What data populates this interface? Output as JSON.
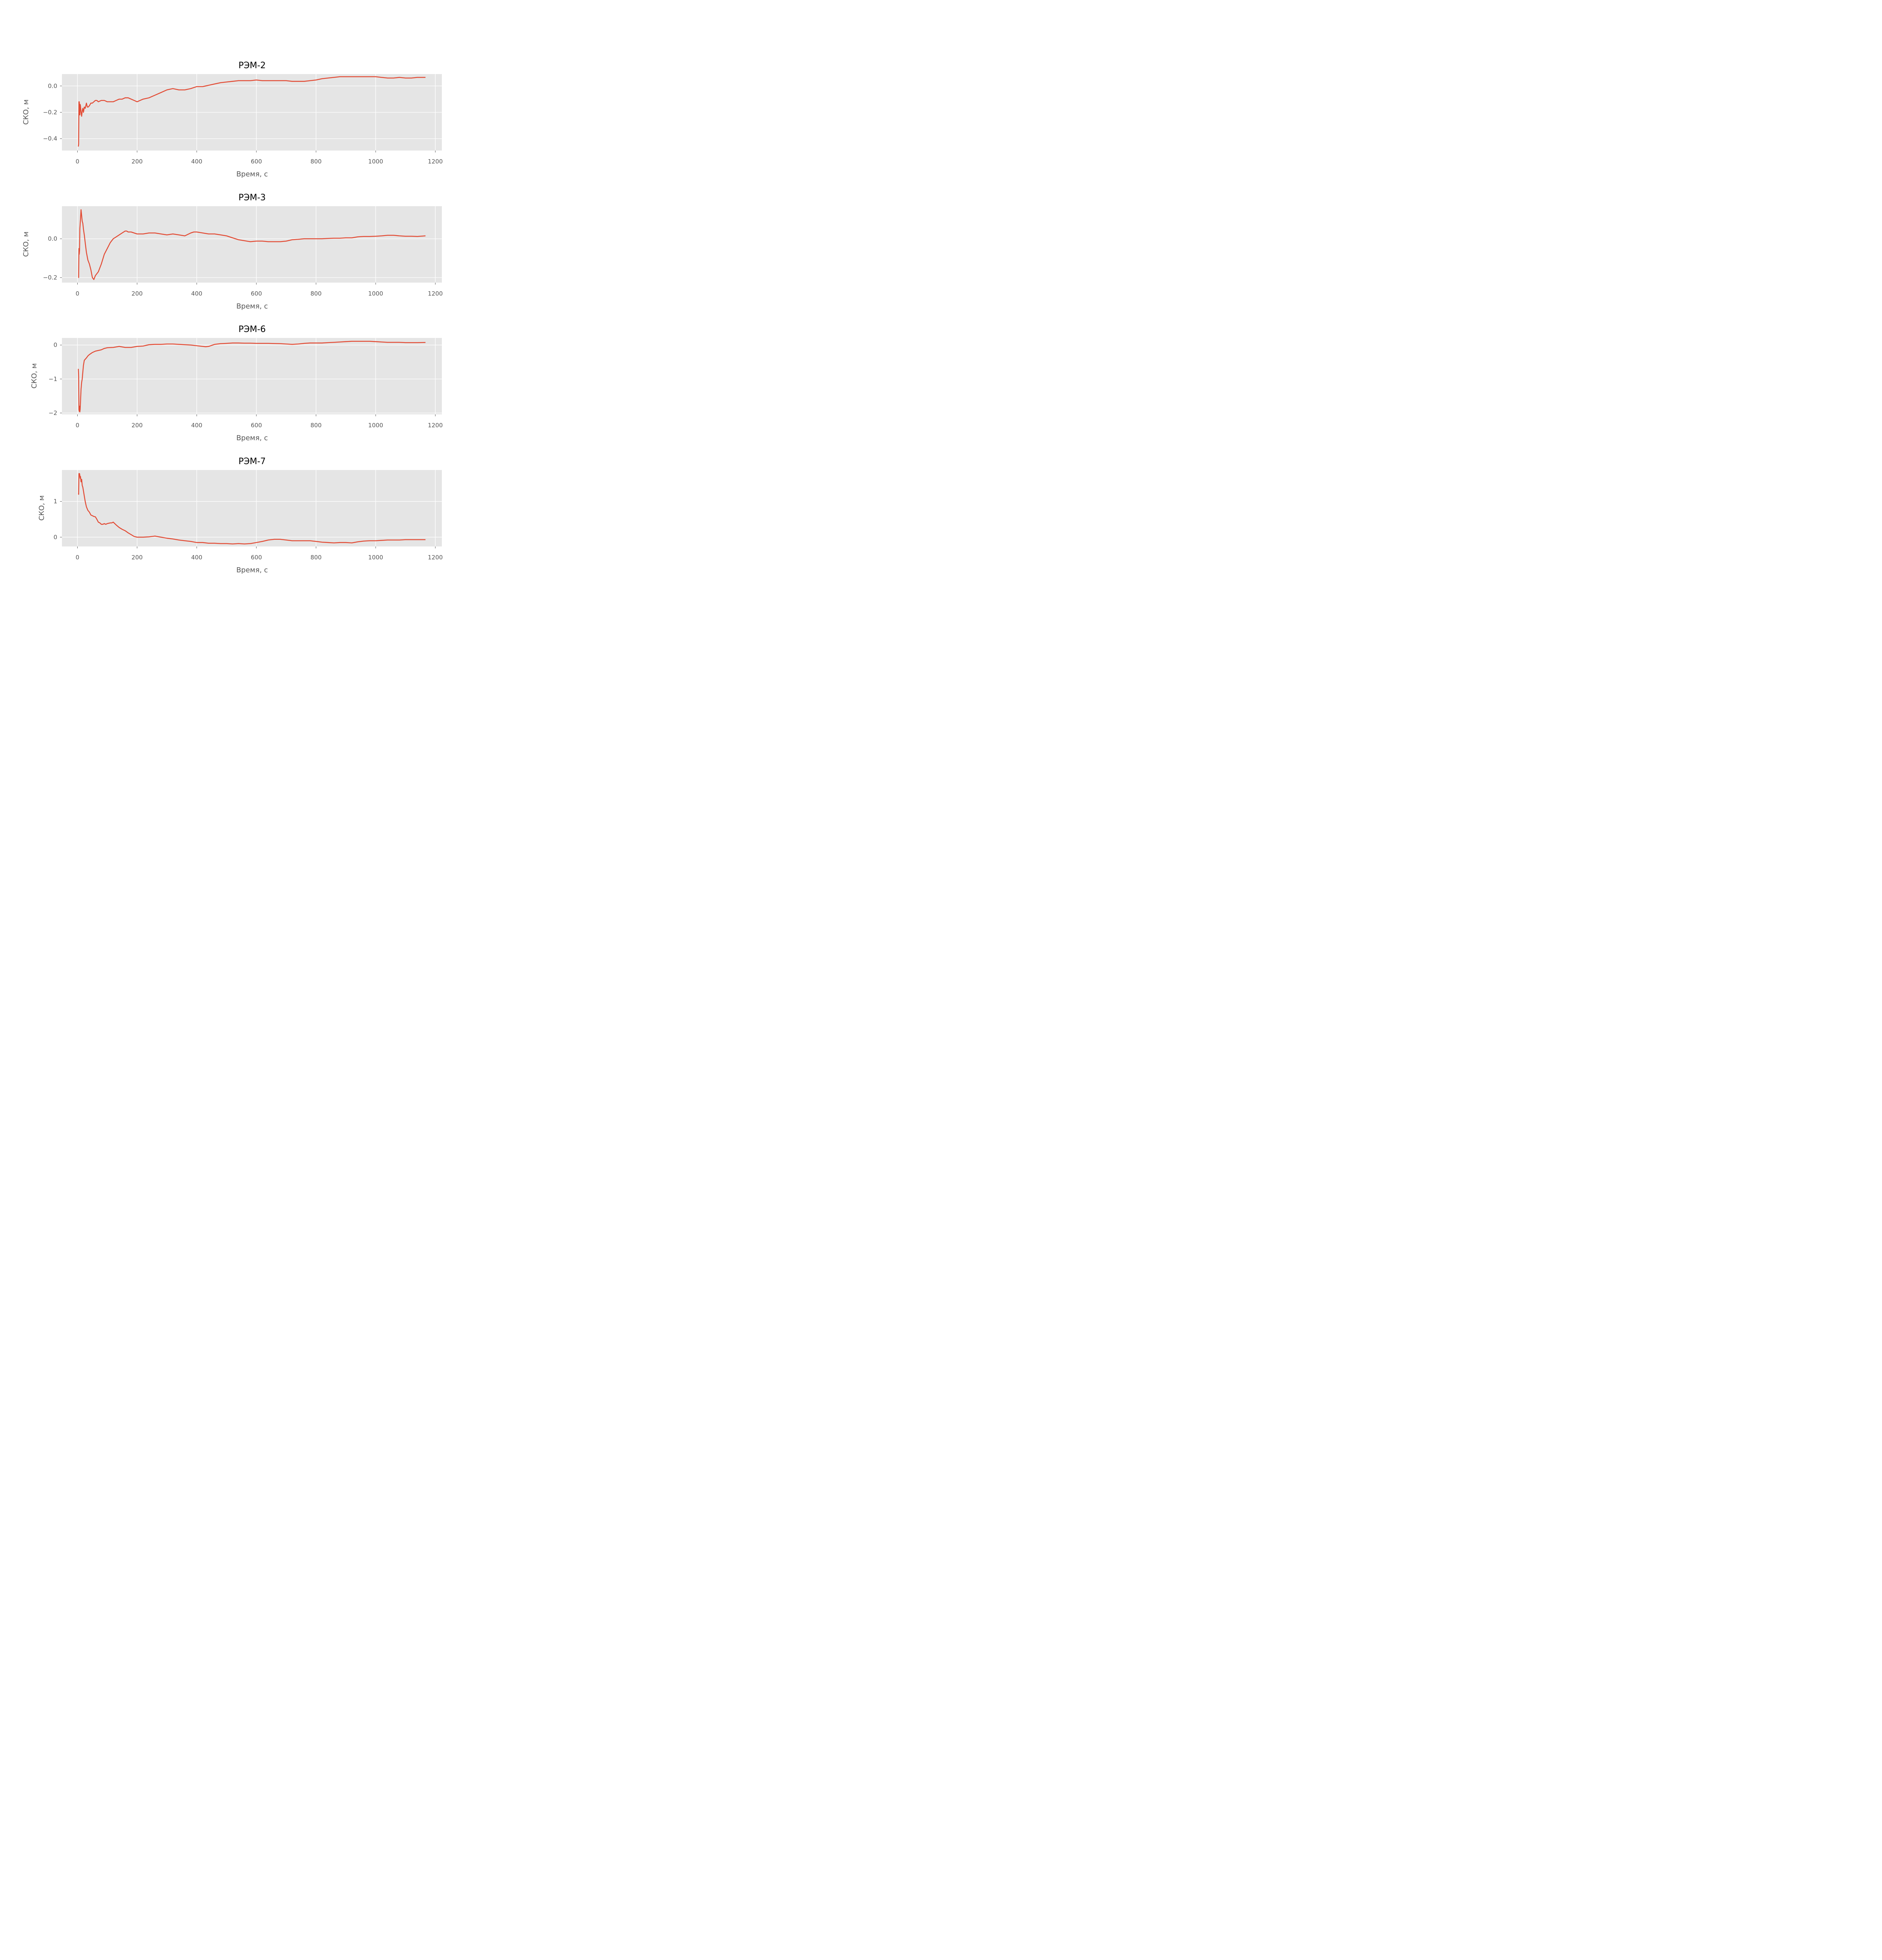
{
  "chart_data": [
    {
      "type": "line",
      "title": "РЭМ-2",
      "xlabel": "Время, с",
      "ylabel": "СКО, м",
      "xlim": [
        -52,
        1222
      ],
      "ylim": [
        -0.49,
        0.09
      ],
      "xticks": [
        0,
        200,
        400,
        600,
        800,
        1000,
        1200
      ],
      "xtick_labels": [
        "0",
        "200",
        "400",
        "600",
        "800",
        "1000",
        "1200"
      ],
      "yticks": [
        -0.4,
        -0.2,
        0.0
      ],
      "ytick_labels": [
        "−0.4",
        "−0.2",
        "0.0"
      ],
      "grid": true,
      "series": [
        {
          "color": "#E24A33",
          "x": [
            3,
            4,
            5,
            6,
            7,
            8,
            9,
            10,
            12,
            14,
            16,
            18,
            20,
            23,
            26,
            30,
            33,
            36,
            40,
            45,
            50,
            55,
            60,
            65,
            70,
            80,
            90,
            100,
            110,
            120,
            130,
            140,
            150,
            160,
            170,
            180,
            190,
            200,
            210,
            220,
            240,
            260,
            280,
            300,
            320,
            340,
            360,
            380,
            400,
            420,
            440,
            460,
            480,
            500,
            520,
            540,
            560,
            580,
            600,
            620,
            640,
            660,
            680,
            700,
            720,
            740,
            760,
            780,
            800,
            820,
            840,
            860,
            880,
            900,
            920,
            940,
            960,
            980,
            1000,
            1020,
            1040,
            1060,
            1080,
            1100,
            1120,
            1140,
            1167
          ],
          "y": [
            -0.46,
            -0.44,
            -0.12,
            -0.12,
            -0.15,
            -0.22,
            -0.14,
            -0.15,
            -0.2,
            -0.23,
            -0.19,
            -0.17,
            -0.2,
            -0.16,
            -0.17,
            -0.13,
            -0.16,
            -0.16,
            -0.15,
            -0.13,
            -0.13,
            -0.12,
            -0.11,
            -0.11,
            -0.12,
            -0.11,
            -0.11,
            -0.12,
            -0.12,
            -0.12,
            -0.11,
            -0.1,
            -0.1,
            -0.09,
            -0.09,
            -0.1,
            -0.11,
            -0.12,
            -0.11,
            -0.1,
            -0.09,
            -0.07,
            -0.05,
            -0.03,
            -0.02,
            -0.03,
            -0.03,
            -0.02,
            -0.005,
            -0.005,
            0.005,
            0.015,
            0.025,
            0.03,
            0.035,
            0.04,
            0.04,
            0.04,
            0.045,
            0.04,
            0.04,
            0.04,
            0.04,
            0.04,
            0.035,
            0.035,
            0.035,
            0.04,
            0.045,
            0.055,
            0.06,
            0.065,
            0.07,
            0.07,
            0.07,
            0.07,
            0.07,
            0.07,
            0.07,
            0.065,
            0.06,
            0.06,
            0.065,
            0.06,
            0.06,
            0.065,
            0.065
          ]
        }
      ]
    },
    {
      "type": "line",
      "title": "РЭМ-3",
      "xlabel": "Время, с",
      "ylabel": "СКО, м",
      "xlim": [
        -52,
        1222
      ],
      "ylim": [
        -0.226,
        0.168
      ],
      "xticks": [
        0,
        200,
        400,
        600,
        800,
        1000,
        1200
      ],
      "xtick_labels": [
        "0",
        "200",
        "400",
        "600",
        "800",
        "1000",
        "1200"
      ],
      "yticks": [
        -0.2,
        0.0
      ],
      "ytick_labels": [
        "−0.2",
        "0.0"
      ],
      "grid": true,
      "series": [
        {
          "color": "#E24A33",
          "x": [
            3,
            4,
            5,
            6,
            7,
            8,
            10,
            12,
            14,
            16,
            18,
            20,
            23,
            26,
            30,
            35,
            40,
            45,
            50,
            55,
            60,
            65,
            70,
            80,
            90,
            100,
            110,
            120,
            130,
            140,
            150,
            160,
            165,
            170,
            180,
            190,
            200,
            220,
            240,
            260,
            280,
            300,
            320,
            340,
            360,
            380,
            390,
            400,
            420,
            440,
            460,
            480,
            500,
            520,
            540,
            560,
            580,
            600,
            620,
            640,
            660,
            680,
            700,
            720,
            740,
            760,
            780,
            800,
            820,
            840,
            860,
            880,
            900,
            920,
            940,
            960,
            980,
            1000,
            1020,
            1040,
            1060,
            1080,
            1100,
            1120,
            1140,
            1167
          ],
          "y": [
            -0.2,
            -0.2,
            -0.05,
            -0.08,
            -0.06,
            0.05,
            0.1,
            0.15,
            0.12,
            0.09,
            0.08,
            0.05,
            0.02,
            -0.02,
            -0.07,
            -0.11,
            -0.13,
            -0.16,
            -0.2,
            -0.21,
            -0.19,
            -0.18,
            -0.17,
            -0.13,
            -0.08,
            -0.05,
            -0.02,
            0.0,
            0.01,
            0.02,
            0.03,
            0.04,
            0.04,
            0.035,
            0.035,
            0.03,
            0.025,
            0.025,
            0.03,
            0.03,
            0.025,
            0.02,
            0.025,
            0.02,
            0.015,
            0.03,
            0.035,
            0.035,
            0.03,
            0.025,
            0.025,
            0.02,
            0.015,
            0.005,
            -0.005,
            -0.01,
            -0.015,
            -0.012,
            -0.012,
            -0.015,
            -0.015,
            -0.015,
            -0.012,
            -0.005,
            -0.003,
            0.0,
            0.0,
            0.0,
            0.0,
            0.002,
            0.003,
            0.003,
            0.005,
            0.005,
            0.01,
            0.012,
            0.012,
            0.013,
            0.015,
            0.018,
            0.018,
            0.015,
            0.013,
            0.013,
            0.012,
            0.015
          ]
        }
      ]
    },
    {
      "type": "line",
      "title": "РЭМ-6",
      "xlabel": "Время, с",
      "ylabel": "СКО, м",
      "xlim": [
        -52,
        1222
      ],
      "ylim": [
        -2.04,
        0.21
      ],
      "xticks": [
        0,
        200,
        400,
        600,
        800,
        1000,
        1200
      ],
      "xtick_labels": [
        "0",
        "200",
        "400",
        "600",
        "800",
        "1000",
        "1200"
      ],
      "yticks": [
        -2,
        -1,
        0
      ],
      "ytick_labels": [
        "−2",
        "−1",
        "0"
      ],
      "grid": true,
      "series": [
        {
          "color": "#E24A33",
          "x": [
            3,
            4,
            5,
            6,
            7,
            8,
            9,
            10,
            12,
            14,
            16,
            18,
            20,
            23,
            26,
            30,
            35,
            40,
            50,
            60,
            70,
            80,
            90,
            100,
            120,
            140,
            160,
            180,
            200,
            220,
            240,
            260,
            280,
            300,
            320,
            340,
            360,
            380,
            400,
            420,
            430,
            440,
            460,
            480,
            500,
            520,
            540,
            560,
            580,
            600,
            620,
            640,
            660,
            680,
            700,
            720,
            740,
            760,
            780,
            800,
            820,
            840,
            860,
            880,
            900,
            920,
            940,
            960,
            980,
            1000,
            1020,
            1040,
            1060,
            1080,
            1100,
            1120,
            1140,
            1167
          ],
          "y": [
            -0.7,
            -0.95,
            -1.9,
            -1.95,
            -1.8,
            -1.97,
            -1.9,
            -1.7,
            -1.3,
            -1.1,
            -1.0,
            -0.8,
            -0.6,
            -0.45,
            -0.42,
            -0.38,
            -0.32,
            -0.28,
            -0.22,
            -0.18,
            -0.16,
            -0.14,
            -0.1,
            -0.08,
            -0.07,
            -0.04,
            -0.07,
            -0.07,
            -0.04,
            -0.03,
            0.01,
            0.02,
            0.02,
            0.03,
            0.03,
            0.02,
            0.01,
            0.0,
            -0.02,
            -0.04,
            -0.05,
            -0.04,
            0.02,
            0.04,
            0.05,
            0.06,
            0.06,
            0.055,
            0.055,
            0.05,
            0.05,
            0.05,
            0.045,
            0.04,
            0.03,
            0.02,
            0.03,
            0.05,
            0.06,
            0.06,
            0.06,
            0.07,
            0.08,
            0.09,
            0.1,
            0.11,
            0.11,
            0.11,
            0.11,
            0.1,
            0.09,
            0.08,
            0.08,
            0.08,
            0.07,
            0.07,
            0.07,
            0.075
          ]
        }
      ]
    },
    {
      "type": "line",
      "title": "РЭМ-7",
      "xlabel": "Время, с",
      "ylabel": "СКО, м",
      "xlim": [
        -52,
        1222
      ],
      "ylim": [
        -0.26,
        1.88
      ],
      "xticks": [
        0,
        200,
        400,
        600,
        800,
        1000,
        1200
      ],
      "xtick_labels": [
        "0",
        "200",
        "400",
        "600",
        "800",
        "1000",
        "1200"
      ],
      "yticks": [
        0,
        1
      ],
      "ytick_labels": [
        "0",
        "1"
      ],
      "grid": true,
      "series": [
        {
          "color": "#E24A33",
          "x": [
            3,
            4,
            5,
            6,
            7,
            8,
            9,
            10,
            12,
            14,
            16,
            18,
            20,
            23,
            26,
            30,
            35,
            40,
            45,
            50,
            55,
            60,
            65,
            70,
            75,
            80,
            85,
            90,
            95,
            100,
            105,
            110,
            115,
            120,
            130,
            140,
            150,
            160,
            170,
            180,
            190,
            200,
            210,
            220,
            240,
            260,
            280,
            300,
            320,
            340,
            360,
            380,
            400,
            420,
            440,
            460,
            480,
            500,
            520,
            540,
            560,
            580,
            600,
            620,
            640,
            660,
            680,
            700,
            720,
            740,
            760,
            780,
            800,
            820,
            840,
            860,
            880,
            900,
            920,
            940,
            960,
            980,
            1000,
            1020,
            1040,
            1060,
            1080,
            1100,
            1120,
            1140,
            1167
          ],
          "y": [
            1.22,
            1.2,
            1.78,
            1.75,
            1.78,
            1.72,
            1.65,
            1.7,
            1.55,
            1.62,
            1.45,
            1.4,
            1.3,
            1.15,
            1.0,
            0.85,
            0.75,
            0.7,
            0.62,
            0.6,
            0.58,
            0.57,
            0.5,
            0.42,
            0.4,
            0.36,
            0.36,
            0.38,
            0.36,
            0.38,
            0.39,
            0.4,
            0.4,
            0.42,
            0.34,
            0.27,
            0.22,
            0.18,
            0.12,
            0.07,
            0.02,
            0.0,
            0.0,
            0.0,
            0.01,
            0.03,
            0.0,
            -0.03,
            -0.05,
            -0.08,
            -0.1,
            -0.12,
            -0.15,
            -0.15,
            -0.17,
            -0.17,
            -0.18,
            -0.18,
            -0.19,
            -0.18,
            -0.19,
            -0.18,
            -0.15,
            -0.12,
            -0.08,
            -0.06,
            -0.06,
            -0.08,
            -0.1,
            -0.1,
            -0.1,
            -0.1,
            -0.12,
            -0.14,
            -0.15,
            -0.16,
            -0.15,
            -0.15,
            -0.16,
            -0.13,
            -0.11,
            -0.1,
            -0.1,
            -0.09,
            -0.08,
            -0.08,
            -0.08,
            -0.07,
            -0.07,
            -0.07,
            -0.07
          ]
        }
      ]
    }
  ]
}
